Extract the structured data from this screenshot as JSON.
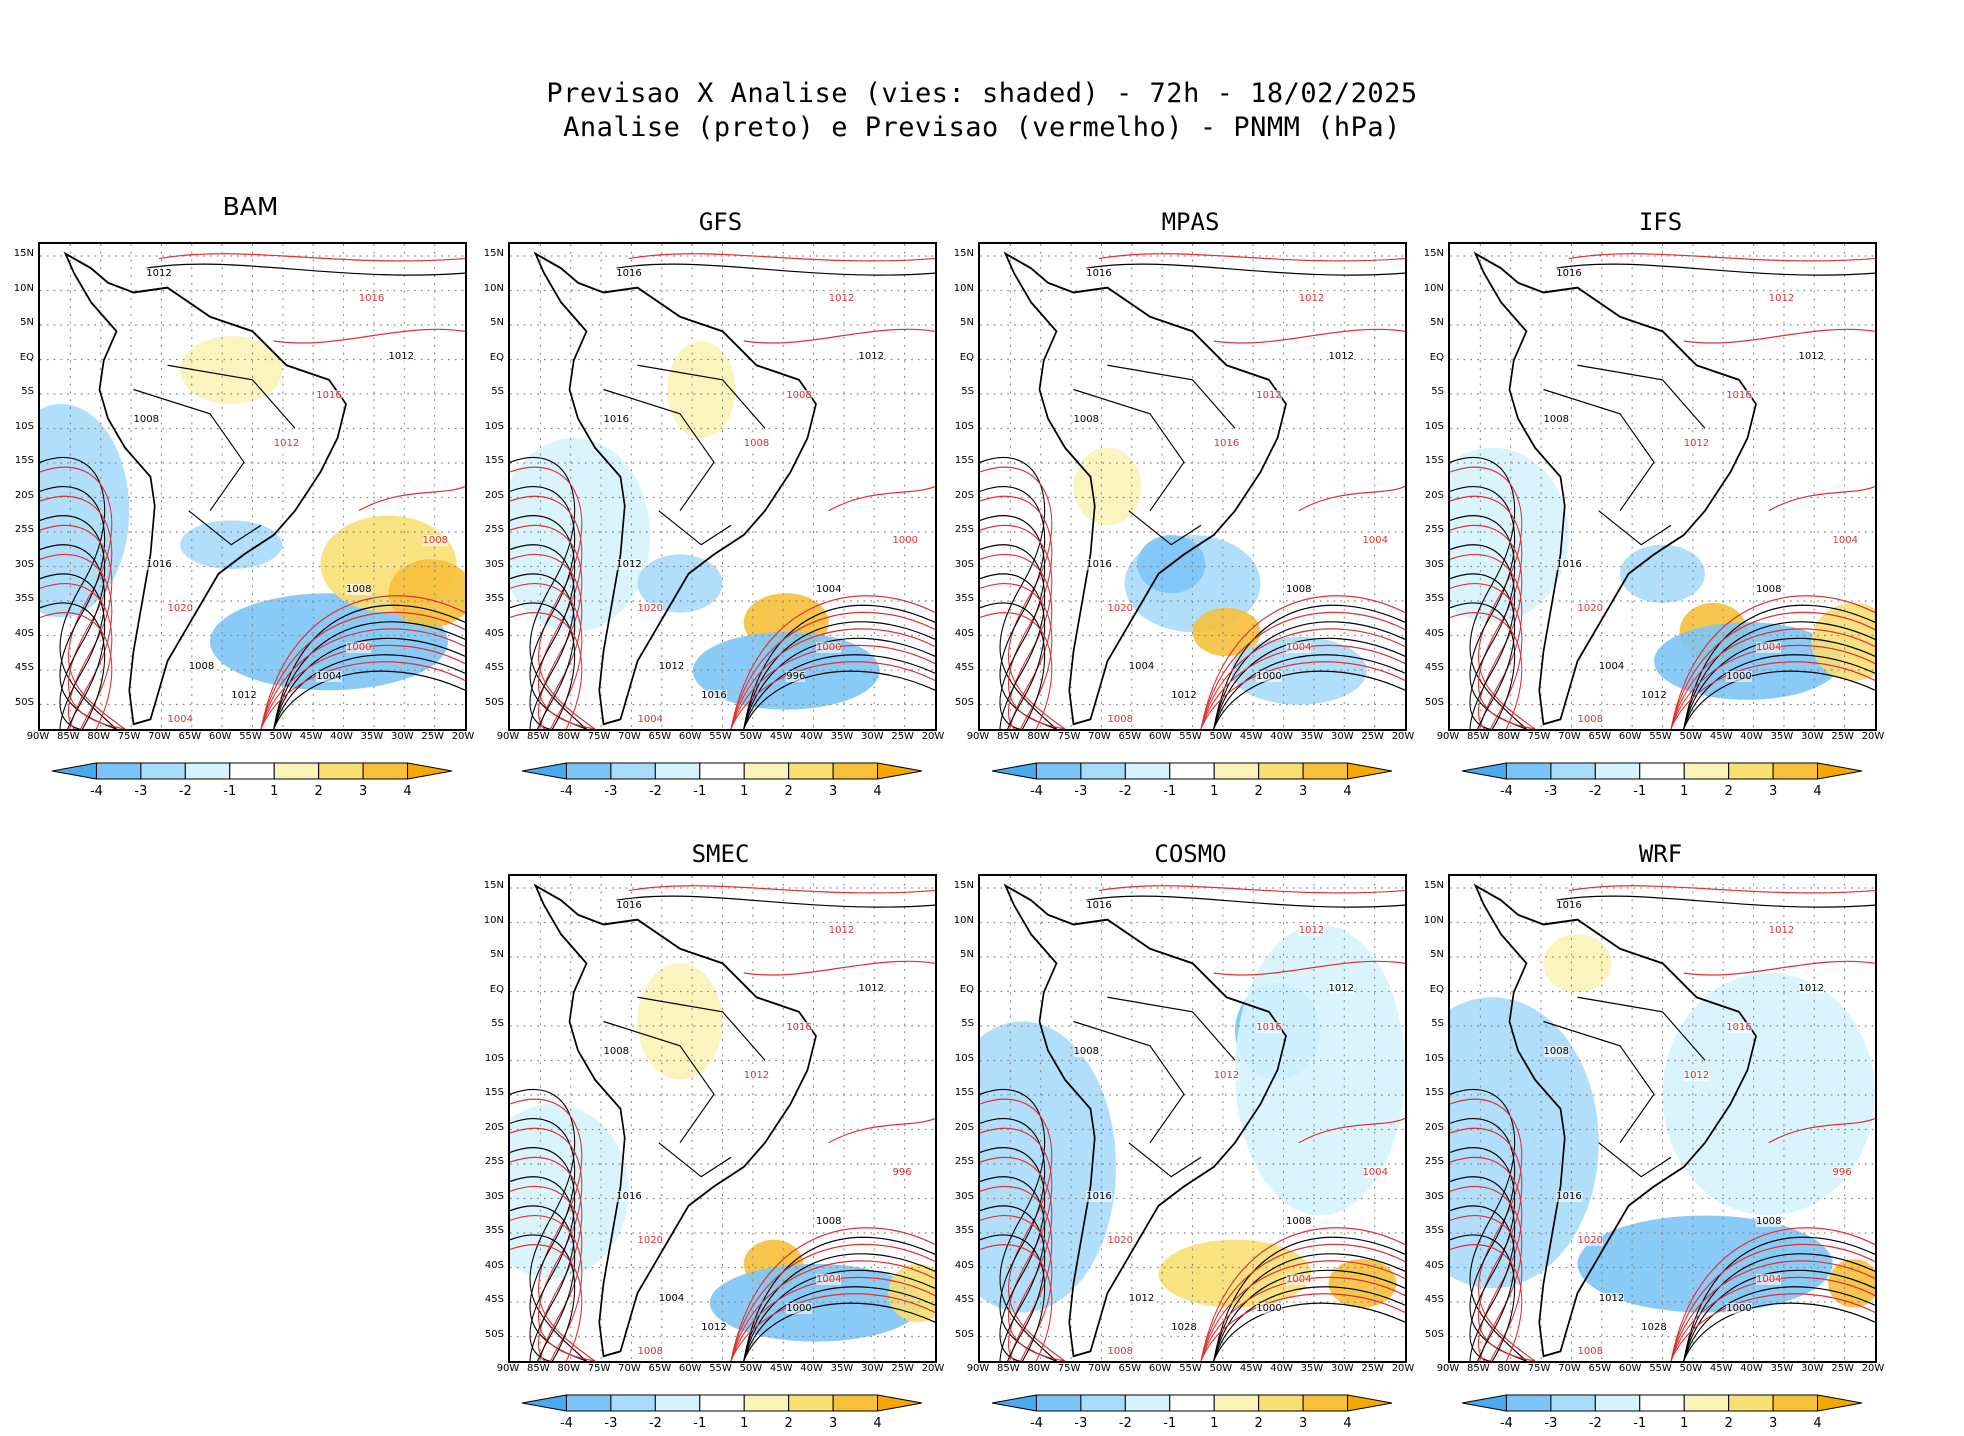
{
  "title": {
    "line1": "Previsao X Analise (vies: shaded) - 72h - 18/02/2025",
    "line2": "Analise (preto) e Previsao (vermelho) - PNMM (hPa)"
  },
  "lat_ticks": [
    "15N",
    "10N",
    "5N",
    "EQ",
    "5S",
    "10S",
    "15S",
    "20S",
    "25S",
    "30S",
    "35S",
    "40S",
    "45S",
    "50S"
  ],
  "lon_ticks": [
    "90W",
    "85W",
    "80W",
    "75W",
    "70W",
    "65W",
    "60W",
    "55W",
    "50W",
    "45W",
    "40W",
    "35W",
    "30W",
    "25W",
    "20W"
  ],
  "colorbar": {
    "labels": [
      "-4",
      "-3",
      "-2",
      "-1",
      "1",
      "2",
      "3",
      "4"
    ],
    "colors": [
      "#4aaaf0",
      "#7cc4f6",
      "#a9dcfb",
      "#d6f3fd",
      "#ffffff",
      "#fbf3b8",
      "#f8df72",
      "#f6c03a",
      "#f5a800"
    ]
  },
  "contour_colors": {
    "analysis": "#000000",
    "forecast": "#e03030"
  },
  "panels": [
    {
      "id": "bam",
      "title": "BAM",
      "labels": [
        "1012",
        "1016",
        "1012",
        "1016",
        "1008",
        "1012",
        "1008",
        "1000",
        "1004",
        "1008",
        "1016",
        "1020",
        "1012",
        "1004",
        "1008"
      ]
    },
    {
      "id": "gfs",
      "title": "GFS",
      "labels": [
        "1016",
        "1012",
        "1012",
        "1008",
        "1016",
        "1008",
        "1004",
        "1000",
        "996",
        "1000",
        "1012",
        "1020",
        "1016",
        "1004",
        "1012"
      ]
    },
    {
      "id": "mpas",
      "title": "MPAS",
      "labels": [
        "1016",
        "1012",
        "1012",
        "1012",
        "1008",
        "1016",
        "1008",
        "1004",
        "1000",
        "1004",
        "1016",
        "1020",
        "1012",
        "1008",
        "1004"
      ]
    },
    {
      "id": "ifs",
      "title": "IFS",
      "labels": [
        "1016",
        "1012",
        "1012",
        "1016",
        "1008",
        "1012",
        "1008",
        "1004",
        "1000",
        "1004",
        "1016",
        "1020",
        "1012",
        "1008",
        "1004"
      ]
    },
    {
      "id": "smec",
      "title": "SMEC",
      "labels": [
        "1016",
        "1012",
        "1012",
        "1016",
        "1008",
        "1012",
        "1008",
        "1004",
        "1000",
        "996",
        "1016",
        "1020",
        "1012",
        "1008",
        "1004"
      ]
    },
    {
      "id": "cosmo",
      "title": "COSMO",
      "labels": [
        "1016",
        "1012",
        "1012",
        "1016",
        "1008",
        "1012",
        "1008",
        "1004",
        "1000",
        "1004",
        "1016",
        "1020",
        "1028",
        "1008",
        "1012"
      ]
    },
    {
      "id": "wrf",
      "title": "WRF",
      "labels": [
        "1016",
        "1012",
        "1012",
        "1016",
        "1008",
        "1012",
        "1008",
        "1004",
        "1000",
        "996",
        "1016",
        "1020",
        "1028",
        "1008",
        "1012"
      ]
    }
  ]
}
